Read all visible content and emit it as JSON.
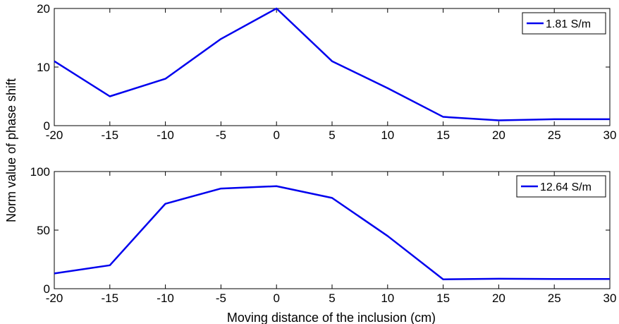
{
  "chart_data": [
    {
      "type": "line",
      "x": [
        -20,
        -15,
        -10,
        -5,
        0,
        5,
        10,
        15,
        20,
        25,
        30
      ],
      "series": [
        {
          "name": "1.81 S/m",
          "color": "#0000ee",
          "values": [
            11,
            5,
            8,
            14.8,
            20,
            11,
            6.4,
            1.5,
            0.9,
            1.1,
            1.1
          ]
        }
      ],
      "xlim": [
        -20,
        30
      ],
      "ylim": [
        0,
        20
      ],
      "xticks": [
        "-20",
        "-15",
        "-10",
        "-5",
        "0",
        "5",
        "10",
        "15",
        "20",
        "25",
        "30"
      ],
      "yticks": [
        "0",
        "10",
        "20"
      ],
      "legend_position": "top-right"
    },
    {
      "type": "line",
      "x": [
        -20,
        -15,
        -10,
        -5,
        0,
        5,
        10,
        15,
        20,
        25,
        30
      ],
      "series": [
        {
          "name": "12.64 S/m",
          "color": "#0000ee",
          "values": [
            13,
            20,
            72.5,
            85.5,
            87.5,
            77.5,
            45,
            8,
            8.5,
            8.3,
            8.3
          ]
        }
      ],
      "xlim": [
        -20,
        30
      ],
      "ylim": [
        0,
        100
      ],
      "xticks": [
        "-20",
        "-15",
        "-10",
        "-5",
        "0",
        "5",
        "10",
        "15",
        "20",
        "25",
        "30"
      ],
      "yticks": [
        "0",
        "50",
        "100"
      ],
      "legend_position": "top-right"
    }
  ],
  "labels": {
    "ylabel": "Norm value of phase shift",
    "xlabel": "Moving distance of the inclusion (cm)"
  }
}
